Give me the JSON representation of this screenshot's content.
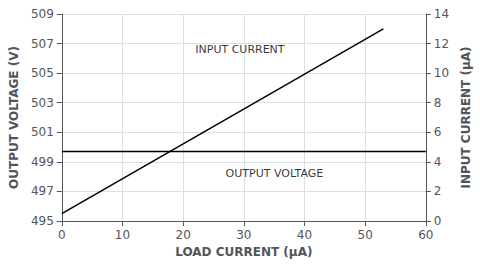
{
  "chart_data": {
    "type": "line",
    "xlabel": "LOAD CURRENT (μA)",
    "ylabel": "OUTPUT VOLTAGE (V)",
    "y2label": "INPUT CURRENT (μA)",
    "xlim": [
      0,
      60
    ],
    "xticks": [
      0,
      10,
      20,
      30,
      40,
      50,
      60
    ],
    "ylim": [
      495,
      509
    ],
    "yticks": [
      495,
      497,
      499,
      501,
      503,
      505,
      507,
      509
    ],
    "y2lim": [
      0,
      14
    ],
    "y2ticks": [
      0,
      2,
      4,
      6,
      8,
      10,
      12,
      14
    ],
    "grid": true,
    "series": [
      {
        "x": [
          0,
          60
        ],
        "values": [
          499.7,
          499.7
        ],
        "color": "#000000"
      },
      {
        "x": [
          0,
          53
        ],
        "values": [
          0.5,
          13.0
        ],
        "color": "#000000",
        "axis": "y2"
      }
    ],
    "annotations": [
      {
        "text": "INPUT CURRENT",
        "x": 22,
        "y": 506.2,
        "color": "#000000"
      },
      {
        "text": "OUTPUT VOLTAGE",
        "x": 27,
        "y": 498.6,
        "color": "#000000"
      }
    ]
  }
}
